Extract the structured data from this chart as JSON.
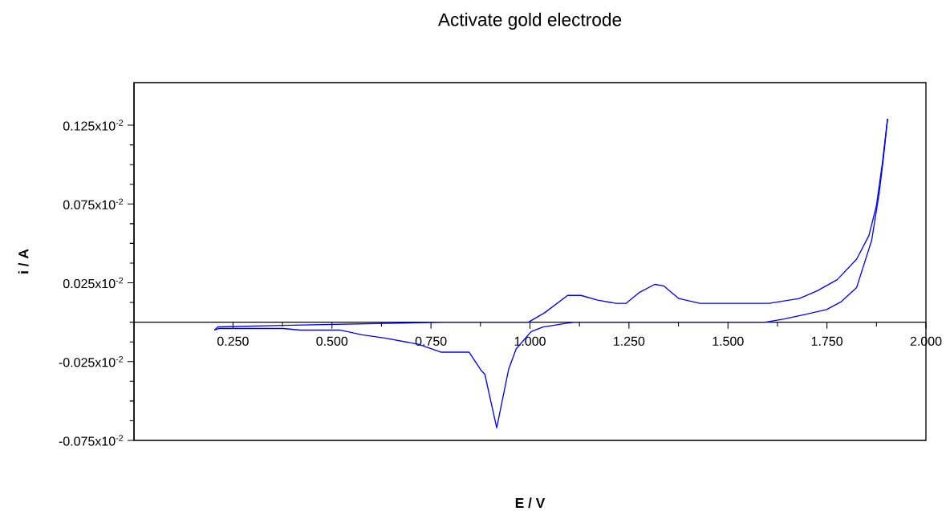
{
  "chart_data": {
    "type": "line",
    "title": "Activate gold electrode",
    "xlabel": "E / V",
    "ylabel": "i / A",
    "series": [
      {
        "color": "#0000ff",
        "x": [
          0.203,
          0.212,
          0.377,
          0.782,
          0.836,
          0.996,
          1.037,
          1.095,
          1.129,
          1.171,
          1.217,
          1.243,
          1.277,
          1.315,
          1.338,
          1.376,
          1.429,
          1.604,
          1.68,
          1.726,
          1.776,
          1.825,
          1.856,
          1.875,
          1.89,
          1.903
        ],
        "values": [
          -5e-05,
          -3e-05,
          -2e-05,
          0,
          0,
          0,
          6e-05,
          0.00017,
          0.00017,
          0.00014,
          0.00012,
          0.00012,
          0.00019,
          0.00024,
          0.00023,
          0.00015,
          0.00012,
          0.00012,
          0.00015,
          0.0002,
          0.00027,
          0.0004,
          0.00055,
          0.00074,
          0.00101,
          0.00129
        ]
      },
      {
        "color": "#0000ff",
        "x": [
          1.903,
          1.893,
          1.882,
          1.863,
          1.825,
          1.786,
          1.749,
          1.696,
          1.642,
          1.594,
          1.11,
          1.033,
          1.003,
          0.965,
          0.946,
          0.916,
          0.886,
          0.878,
          0.846,
          0.775,
          0.718,
          0.633,
          0.576,
          0.52,
          0.42,
          0.377,
          0.214,
          0.203
        ],
        "values": [
          0.00129,
          0.00105,
          0.00082,
          0.00052,
          0.00022,
          0.00013,
          8e-05,
          5e-05,
          2e-05,
          0,
          0,
          -3e-05,
          -6e-05,
          -0.00017,
          -0.0003,
          -0.00067,
          -0.00033,
          -0.00031,
          -0.00019,
          -0.00019,
          -0.00014,
          -0.0001,
          -8e-05,
          -5e-05,
          -5e-05,
          -4e-05,
          -4e-05,
          -5e-05
        ]
      }
    ],
    "xlim": [
      0,
      2.0
    ],
    "ylim": [
      -0.00075,
      0.00152
    ],
    "xticks": [
      {
        "value": 0.25,
        "label": "0.250"
      },
      {
        "value": 0.5,
        "label": "0.500"
      },
      {
        "value": 0.75,
        "label": "0.750"
      },
      {
        "value": 1.0,
        "label": "1.000"
      },
      {
        "value": 1.25,
        "label": "1.250"
      },
      {
        "value": 1.5,
        "label": "1.500"
      },
      {
        "value": 1.75,
        "label": "1.750"
      },
      {
        "value": 2.0,
        "label": "2.000"
      }
    ],
    "yticks": [
      {
        "value": -0.00075,
        "label": "-0.075x10$^{-2}$"
      },
      {
        "value": -0.00025,
        "label": "-0.025x10$^{-2}$"
      },
      {
        "value": 0.00025,
        "label": "0.025x10$^{-2}$"
      },
      {
        "value": 0.00075,
        "label": "0.075x10$^{-2}$"
      },
      {
        "value": 0.00125,
        "label": "0.125x10$^{-2}$"
      }
    ],
    "marker": "none",
    "line_style": "solid"
  }
}
